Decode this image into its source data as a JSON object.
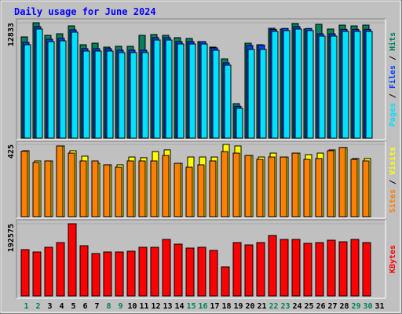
{
  "title": "Daily usage for June 2024",
  "categories": [
    "1",
    "2",
    "3",
    "4",
    "5",
    "6",
    "7",
    "8",
    "9",
    "10",
    "11",
    "12",
    "13",
    "14",
    "15",
    "16",
    "17",
    "18",
    "19",
    "20",
    "21",
    "22",
    "23",
    "24",
    "25",
    "26",
    "27",
    "28",
    "29",
    "30",
    "31"
  ],
  "weekend_index": [
    0,
    1,
    7,
    8,
    14,
    15,
    21,
    22,
    28,
    29
  ],
  "weekend_color": "#00805c",
  "legend_separator": " / ",
  "chart_data": [
    {
      "type": "bar",
      "ylim": [
        0,
        12833
      ],
      "yticks": [
        12833
      ],
      "series": [
        {
          "name": "Hits",
          "color": "#00805c",
          "values": [
            11262,
            12833,
            11436,
            11611,
            12484,
            10389,
            10563,
            10127,
            10214,
            10214,
            11436,
            11524,
            11436,
            11174,
            11087,
            10738,
            10127,
            8817,
            3841,
            10563,
            10389,
            12222,
            12135,
            12746,
            12135,
            12659,
            12135,
            12571,
            12484,
            12571,
            null
          ]
        },
        {
          "name": "Files",
          "color": "#0040ff",
          "values": [
            10650,
            12400,
            11000,
            11100,
            12050,
            9950,
            9950,
            9950,
            9780,
            9780,
            9780,
            11180,
            11180,
            10740,
            10740,
            10740,
            10040,
            8380,
            3550,
            10300,
            10350,
            12100,
            12200,
            12400,
            12200,
            11600,
            11600,
            12100,
            12100,
            12100,
            null
          ]
        },
        {
          "name": "Pages",
          "color": "#00e0ff",
          "values": [
            10389,
            12135,
            10738,
            10825,
            11786,
            9690,
            9690,
            9690,
            9516,
            9516,
            9516,
            10913,
            10913,
            10476,
            10476,
            10476,
            9778,
            8119,
            3317,
            9865,
            9865,
            11873,
            11960,
            12135,
            11960,
            11349,
            11349,
            11873,
            11873,
            11873,
            null
          ]
        }
      ]
    },
    {
      "type": "bar",
      "ylim": [
        0,
        425
      ],
      "yticks": [
        425
      ],
      "series": [
        {
          "name": "Visits",
          "color": "#ffff00",
          "values": [
            388,
            328,
            328,
            416,
            388,
            356,
            314,
            305,
            305,
            351,
            347,
            383,
            393,
            314,
            351,
            351,
            351,
            425,
            416,
            360,
            351,
            374,
            351,
            374,
            365,
            374,
            393,
            407,
            342,
            342,
            null
          ]
        },
        {
          "name": "Sites",
          "color": "#ff8000",
          "values": [
            385,
            319,
            328,
            416,
            374,
            328,
            328,
            305,
            291,
            328,
            328,
            328,
            360,
            314,
            291,
            305,
            328,
            383,
            374,
            360,
            337,
            351,
            351,
            374,
            337,
            342,
            388,
            407,
            337,
            328,
            null
          ]
        }
      ]
    },
    {
      "type": "bar",
      "ylim": [
        0,
        192575
      ],
      "yticks": [
        192575
      ],
      "series": [
        {
          "name": "KBytes",
          "color": "#ff0000",
          "values": [
            123487,
            117208,
            129766,
            142324,
            192575,
            133952,
            113022,
            117208,
            117208,
            119301,
            129766,
            129766,
            150696,
            138138,
            127673,
            129766,
            121394,
            77441,
            142324,
            136045,
            142324,
            161161,
            150696,
            150696,
            140231,
            142324,
            148603,
            144417,
            150696,
            142324,
            null
          ]
        }
      ]
    }
  ]
}
